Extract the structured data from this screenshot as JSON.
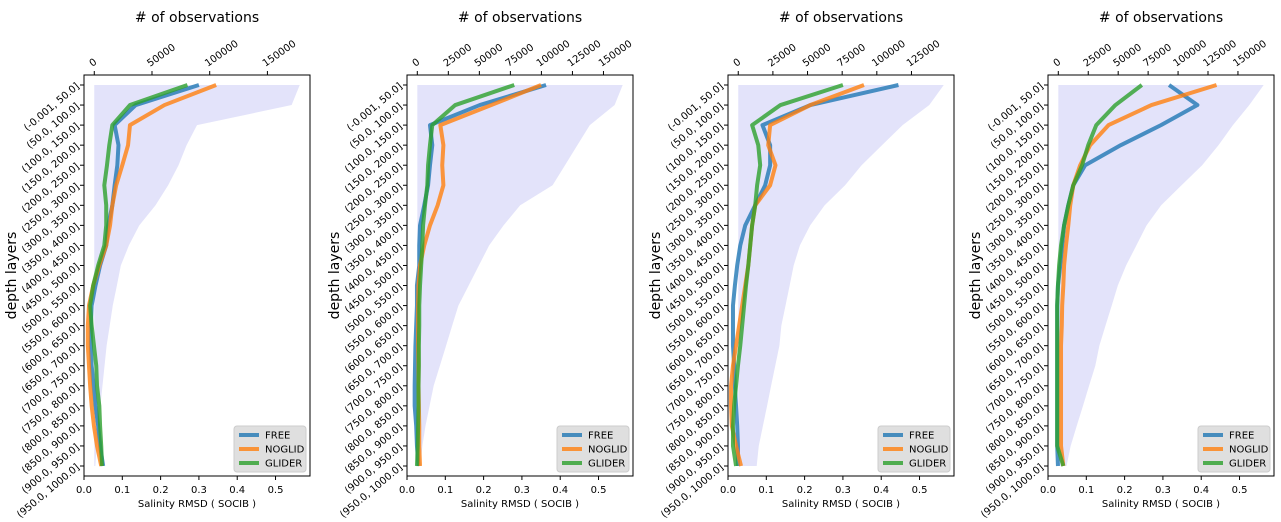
{
  "chart_data": [
    {
      "type": "line",
      "x_label": "Salinity RMSD ( SOCIB )",
      "x2_label": "# of observations",
      "y_label": "depth layers",
      "categories": [
        "(-0.001, 50.0]",
        "(50.0, 100.0]",
        "(100.0, 150.0]",
        "(150.0, 200.0]",
        "(200.0, 250.0]",
        "(250.0, 300.0]",
        "(300.0, 350.0]",
        "(350.0, 400.0]",
        "(400.0, 450.0]",
        "(450.0, 500.0]",
        "(500.0, 550.0]",
        "(550.0, 600.0]",
        "(600.0, 650.0]",
        "(650.0, 700.0]",
        "(700.0, 750.0]",
        "(750.0, 800.0]",
        "(800.0, 850.0]",
        "(850.0, 900.0]",
        "(900.0, 950.0]",
        "(950.0, 1000.0]"
      ],
      "series": [
        {
          "name": "FREE",
          "color": "#1f77b4",
          "values": [
            0.3,
            0.135,
            0.08,
            0.09,
            0.087,
            0.08,
            0.074,
            0.063,
            0.058,
            0.042,
            0.03,
            0.02,
            0.018,
            0.018,
            0.02,
            0.025,
            0.03,
            0.037,
            0.042,
            0.05
          ]
        },
        {
          "name": "NOGLID",
          "color": "#ff7f0e",
          "values": [
            0.345,
            0.21,
            0.12,
            0.115,
            0.1,
            0.084,
            0.074,
            0.068,
            0.058,
            0.04,
            0.024,
            0.013,
            0.01,
            0.01,
            0.013,
            0.016,
            0.02,
            0.026,
            0.034,
            0.045
          ]
        },
        {
          "name": "GLIDER",
          "color": "#2ca02c",
          "values": [
            0.27,
            0.12,
            0.074,
            0.066,
            0.06,
            0.053,
            0.058,
            0.058,
            0.053,
            0.037,
            0.024,
            0.016,
            0.02,
            0.026,
            0.032,
            0.034,
            0.04,
            0.042,
            0.045,
            0.047
          ]
        }
      ],
      "observations": {
        "axis": "x2",
        "color": "#e3e3fa",
        "values": [
          178000,
          171000,
          89000,
          80000,
          73000,
          64000,
          53000,
          39000,
          30000,
          23000,
          19600,
          16000,
          13400,
          10700,
          8900,
          7100,
          5300,
          3600,
          2100,
          900
        ]
      },
      "xlim": [
        0,
        0.59
      ],
      "xticks": [
        {
          "value": 0,
          "label": "0.0"
        },
        0.1,
        0.2,
        0.3,
        0.4,
        0.5
      ],
      "x2lim": [
        -8900,
        186900
      ],
      "x2ticks": [
        0,
        50000,
        100000,
        150000
      ],
      "legend": "lower right"
    },
    {
      "type": "line",
      "x_label": "Salinity RMSD ( SOCIB )",
      "x2_label": "# of observations",
      "y_label": "depth layers",
      "categories": [
        "(-0.001, 50.0]",
        "(50.0, 100.0]",
        "(100.0, 150.0]",
        "(150.0, 200.0]",
        "(200.0, 250.0]",
        "(250.0, 300.0]",
        "(300.0, 350.0]",
        "(350.0, 400.0]",
        "(400.0, 450.0]",
        "(450.0, 500.0]",
        "(500.0, 550.0]",
        "(550.0, 600.0]",
        "(600.0, 650.0]",
        "(650.0, 700.0]",
        "(700.0, 750.0]",
        "(750.0, 800.0]",
        "(800.0, 850.0]",
        "(850.0, 900.0]",
        "(900.0, 950.0]",
        "(950.0, 1000.0]"
      ],
      "series": [
        {
          "name": "FREE",
          "color": "#1f77b4",
          "values": [
            0.363,
            0.19,
            0.06,
            0.066,
            0.06,
            0.055,
            0.045,
            0.034,
            0.032,
            0.032,
            0.026,
            0.026,
            0.024,
            0.022,
            0.021,
            0.02,
            0.02,
            0.024,
            0.026,
            0.03
          ]
        },
        {
          "name": "NOGLID",
          "color": "#ff7f0e",
          "values": [
            0.35,
            0.22,
            0.087,
            0.095,
            0.092,
            0.095,
            0.08,
            0.06,
            0.045,
            0.034,
            0.03,
            0.029,
            0.029,
            0.029,
            0.03,
            0.03,
            0.031,
            0.032,
            0.032,
            0.034
          ]
        },
        {
          "name": "GLIDER",
          "color": "#2ca02c",
          "values": [
            0.28,
            0.126,
            0.066,
            0.06,
            0.055,
            0.053,
            0.047,
            0.042,
            0.04,
            0.037,
            0.034,
            0.032,
            0.032,
            0.031,
            0.031,
            0.03,
            0.03,
            0.029,
            0.028,
            0.026
          ]
        }
      ],
      "observations": {
        "axis": "x2",
        "color": "#e3e3fa",
        "values": [
          165500,
          159000,
          139000,
          129000,
          119000,
          109000,
          82800,
          69500,
          57900,
          49600,
          41400,
          33100,
          28100,
          23200,
          18200,
          13200,
          9900,
          6600,
          4100,
          2500
        ]
      },
      "xlim": [
        0,
        0.59
      ],
      "xticks": [
        {
          "value": 0,
          "label": "0.0"
        },
        0.1,
        0.2,
        0.3,
        0.4,
        0.5
      ],
      "x2lim": [
        -8300,
        173800
      ],
      "x2ticks": [
        0,
        25000,
        50000,
        75000,
        100000,
        125000,
        150000
      ],
      "legend": "lower right"
    },
    {
      "type": "line",
      "x_label": "Salinity RMSD ( SOCIB )",
      "x2_label": "# of observations",
      "y_label": "depth layers",
      "categories": [
        "(-0.001, 50.0]",
        "(50.0, 100.0]",
        "(100.0, 150.0]",
        "(150.0, 200.0]",
        "(200.0, 250.0]",
        "(250.0, 300.0]",
        "(300.0, 350.0]",
        "(350.0, 400.0]",
        "(400.0, 450.0]",
        "(450.0, 500.0]",
        "(500.0, 550.0]",
        "(550.0, 600.0]",
        "(600.0, 650.0]",
        "(650.0, 700.0]",
        "(700.0, 750.0]",
        "(750.0, 800.0]",
        "(800.0, 850.0]",
        "(850.0, 900.0]",
        "(900.0, 950.0]",
        "(950.0, 1000.0]"
      ],
      "series": [
        {
          "name": "FREE",
          "color": "#1f77b4",
          "values": [
            0.445,
            0.215,
            0.09,
            0.11,
            0.11,
            0.097,
            0.071,
            0.045,
            0.032,
            0.024,
            0.018,
            0.013,
            0.013,
            0.013,
            0.016,
            0.018,
            0.021,
            0.024,
            0.026,
            0.026
          ]
        },
        {
          "name": "NOGLID",
          "color": "#ff7f0e",
          "values": [
            0.355,
            0.215,
            0.11,
            0.105,
            0.124,
            0.11,
            0.071,
            0.063,
            0.058,
            0.053,
            0.045,
            0.037,
            0.029,
            0.021,
            0.013,
            0.008,
            0.008,
            0.01,
            0.021,
            0.034
          ]
        },
        {
          "name": "GLIDER",
          "color": "#2ca02c",
          "values": [
            0.3,
            0.137,
            0.063,
            0.079,
            0.084,
            0.076,
            0.071,
            0.063,
            0.058,
            0.053,
            0.047,
            0.042,
            0.037,
            0.032,
            0.026,
            0.021,
            0.016,
            0.013,
            0.013,
            0.021
          ]
        }
      ],
      "observations": {
        "axis": "x2",
        "color": "#e3e3fa",
        "values": [
          148300,
          137900,
          118600,
          103800,
          89000,
          77100,
          62300,
          51900,
          44500,
          40000,
          37100,
          34100,
          31100,
          29700,
          26700,
          23700,
          20800,
          17800,
          14800,
          13300
        ]
      },
      "xlim": [
        0,
        0.59
      ],
      "xticks": [
        {
          "value": 0,
          "label": "0.0"
        },
        0.1,
        0.2,
        0.3,
        0.4,
        0.5
      ],
      "x2lim": [
        -7400,
        155700
      ],
      "x2ticks": [
        0,
        25000,
        50000,
        75000,
        100000,
        125000
      ],
      "legend": "lower right"
    },
    {
      "type": "line",
      "x_label": "Salinity RMSD ( SOCIB )",
      "x2_label": "# of observations",
      "y_label": "depth layers",
      "categories": [
        "(-0.001, 50.0]",
        "(50.0, 100.0]",
        "(100.0, 150.0]",
        "(150.0, 200.0]",
        "(200.0, 250.0]",
        "(250.0, 300.0]",
        "(300.0, 350.0]",
        "(350.0, 400.0]",
        "(400.0, 450.0]",
        "(450.0, 500.0]",
        "(500.0, 550.0]",
        "(550.0, 600.0]",
        "(600.0, 650.0]",
        "(650.0, 700.0]",
        "(700.0, 750.0]",
        "(750.0, 800.0]",
        "(800.0, 850.0]",
        "(850.0, 900.0]",
        "(900.0, 950.0]",
        "(950.0, 1000.0]"
      ],
      "series": [
        {
          "name": "FREE",
          "color": "#1f77b4",
          "values": [
            0.316,
            0.39,
            0.295,
            0.19,
            0.097,
            0.066,
            0.053,
            0.042,
            0.037,
            0.032,
            0.026,
            0.024,
            0.024,
            0.024,
            0.024,
            0.024,
            0.024,
            0.024,
            0.024,
            0.026
          ]
        },
        {
          "name": "NOGLID",
          "color": "#ff7f0e",
          "values": [
            0.44,
            0.27,
            0.158,
            0.11,
            0.084,
            0.066,
            0.058,
            0.053,
            0.047,
            0.042,
            0.04,
            0.037,
            0.036,
            0.034,
            0.034,
            0.034,
            0.034,
            0.034,
            0.034,
            0.04
          ]
        },
        {
          "name": "GLIDER",
          "color": "#2ca02c",
          "values": [
            0.245,
            0.176,
            0.126,
            0.105,
            0.089,
            0.066,
            0.053,
            0.042,
            0.034,
            0.029,
            0.026,
            0.024,
            0.024,
            0.024,
            0.024,
            0.024,
            0.024,
            0.024,
            0.024,
            0.04
          ]
        }
      ],
      "observations": {
        "axis": "x2",
        "color": "#e3e3fa",
        "values": [
          171500,
          159500,
          145800,
          133800,
          120100,
          102900,
          85800,
          73700,
          65200,
          56600,
          49700,
          44600,
          39400,
          34300,
          30900,
          25700,
          20600,
          15400,
          10300,
          6900
        ]
      },
      "xlim": [
        0,
        0.59
      ],
      "xticks": [
        {
          "value": 0,
          "label": "0.0"
        },
        0.1,
        0.2,
        0.3,
        0.4,
        0.5
      ],
      "x2lim": [
        -8600,
        180100
      ],
      "x2ticks": [
        0,
        25000,
        50000,
        75000,
        100000,
        125000,
        150000
      ],
      "legend": "lower right"
    }
  ]
}
